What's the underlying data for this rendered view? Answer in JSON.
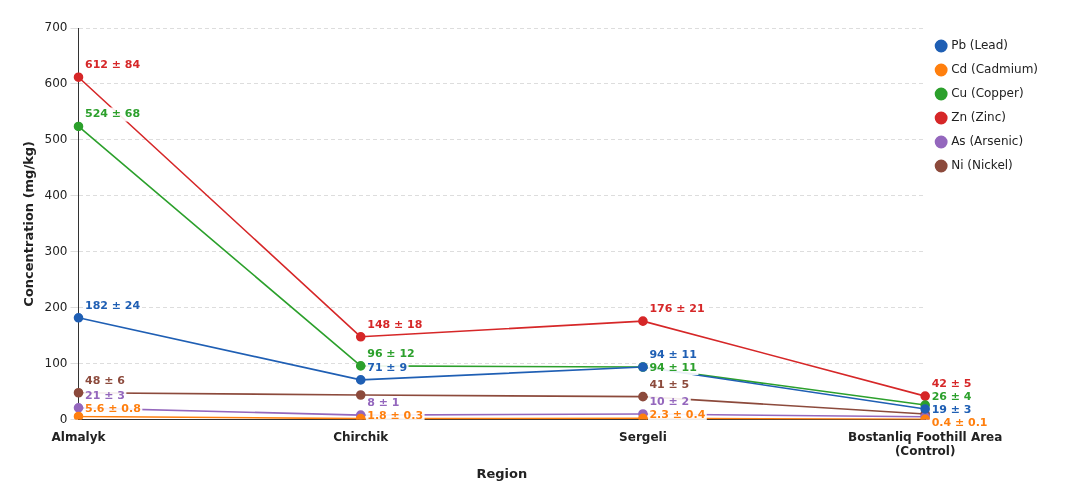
{
  "chart_data": {
    "type": "line",
    "xlabel": "Region",
    "ylabel": "Concentration (mg/kg)",
    "categories": [
      "Almalyk",
      "Chirchik",
      "Sergeli",
      "Bostanliq Foothill Area\n(Control)"
    ],
    "series": [
      {
        "name": "Pb (Lead)",
        "color": "#1f5fb4",
        "values": [
          182,
          71,
          94,
          19
        ],
        "value_labels": [
          "182 ± 24",
          "71 ± 9",
          "94 ± 11",
          "19 ± 3"
        ]
      },
      {
        "name": "Cd (Cadmium)",
        "color": "#ff7f0e",
        "values": [
          5.6,
          1.8,
          2.3,
          0.4
        ],
        "value_labels": [
          "5.6 ± 0.8",
          "1.8 ± 0.3",
          "2.3 ± 0.4",
          "0.4 ± 0.1"
        ]
      },
      {
        "name": "Cu (Copper)",
        "color": "#2ca02c",
        "values": [
          524,
          96,
          94,
          26
        ],
        "value_labels": [
          "524 ± 68",
          "96 ± 12",
          "94 ± 11",
          "26 ± 4"
        ]
      },
      {
        "name": "Zn (Zinc)",
        "color": "#d62728",
        "values": [
          612,
          148,
          176,
          42
        ],
        "value_labels": [
          "612 ± 84",
          "148 ± 18",
          "176 ± 21",
          "42 ± 5"
        ]
      },
      {
        "name": "As (Arsenic)",
        "color": "#9467bd",
        "values": [
          21,
          8,
          10,
          5
        ],
        "value_labels": [
          "21 ± 3",
          "8 ± 1",
          "10 ± 2",
          null
        ]
      },
      {
        "name": "Ni (Nickel)",
        "color": "#8c4a3c",
        "values": [
          48,
          44,
          41,
          10
        ],
        "value_labels": [
          "48 ± 6",
          null,
          "41 ± 5",
          null
        ]
      }
    ],
    "ylim": [
      0,
      700
    ],
    "yticks": [
      0,
      100,
      200,
      300,
      400,
      500,
      600,
      700
    ],
    "grid": "y",
    "legend": "top right",
    "marker": "circle",
    "line_style": "solid"
  }
}
